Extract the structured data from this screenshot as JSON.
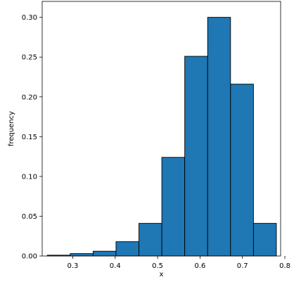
{
  "chart_data": {
    "type": "bar",
    "subtype": "histogram",
    "xlabel": "x",
    "ylabel": "frequency",
    "xlim": [
      0.228,
      0.79
    ],
    "ylim": [
      0,
      0.32
    ],
    "bin_edges": [
      0.24,
      0.294,
      0.348,
      0.402,
      0.456,
      0.51,
      0.564,
      0.618,
      0.672,
      0.726,
      0.78
    ],
    "values": [
      0.001,
      0.003,
      0.006,
      0.018,
      0.041,
      0.124,
      0.251,
      0.3,
      0.216,
      0.041
    ],
    "x_ticks": [
      {
        "value": 0.3,
        "label": "0.3"
      },
      {
        "value": 0.4,
        "label": "0.4"
      },
      {
        "value": 0.5,
        "label": "0.5"
      },
      {
        "value": 0.6,
        "label": "0.6"
      },
      {
        "value": 0.7,
        "label": "0.7"
      },
      {
        "value": 0.8,
        "label": "0.8"
      }
    ],
    "y_ticks": [
      {
        "value": 0.0,
        "label": "0.00"
      },
      {
        "value": 0.05,
        "label": "0.05"
      },
      {
        "value": 0.1,
        "label": "0.10"
      },
      {
        "value": 0.15,
        "label": "0.15"
      },
      {
        "value": 0.2,
        "label": "0.20"
      },
      {
        "value": 0.25,
        "label": "0.25"
      },
      {
        "value": 0.3,
        "label": "0.30"
      }
    ],
    "grid": false,
    "bar_color": "#1f77b4",
    "edge_color": "#000000"
  }
}
